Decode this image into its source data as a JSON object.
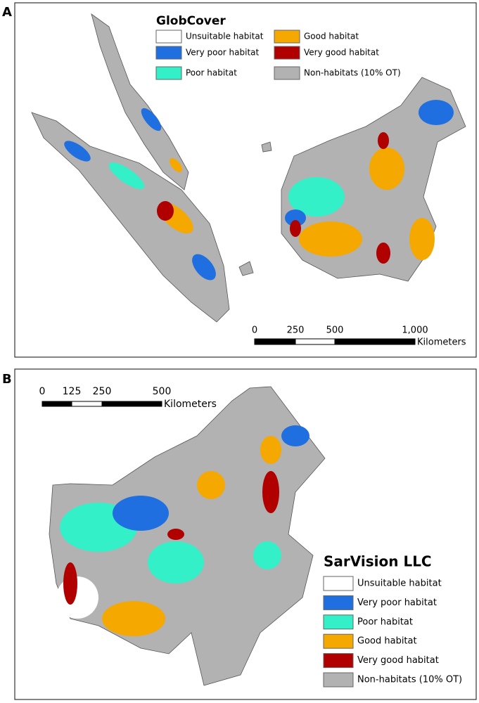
{
  "panels": [
    {
      "label": "A",
      "title": "GlobCover",
      "legend": [
        {
          "label": "Unsuitable habitat",
          "color": "#ffffff"
        },
        {
          "label": "Very poor habitat",
          "color": "#1f6fe0"
        },
        {
          "label": "Poor habitat",
          "color": "#33f0c8"
        },
        {
          "label": "Good habitat",
          "color": "#f5a800"
        },
        {
          "label": "Very good habitat",
          "color": "#b00000"
        },
        {
          "label": "Non-habitats (10% OT)",
          "color": "#b2b2b2"
        }
      ],
      "scale_bar": {
        "ticks": [
          "0",
          "250",
          "500",
          "1,000"
        ],
        "unit": "Kilometers"
      }
    },
    {
      "label": "B",
      "title": "SarVision LLC",
      "legend": [
        {
          "label": "Unsuitable habitat",
          "color": "#ffffff"
        },
        {
          "label": "Very poor habitat",
          "color": "#1f6fe0"
        },
        {
          "label": "Poor habitat",
          "color": "#33f0c8"
        },
        {
          "label": "Good habitat",
          "color": "#f5a800"
        },
        {
          "label": "Very good habitat",
          "color": "#b00000"
        },
        {
          "label": "Non-habitats (10% OT)",
          "color": "#b2b2b2"
        }
      ],
      "scale_bar": {
        "ticks": [
          "0",
          "125",
          "250",
          "500"
        ],
        "unit": "Kilometers"
      }
    }
  ]
}
